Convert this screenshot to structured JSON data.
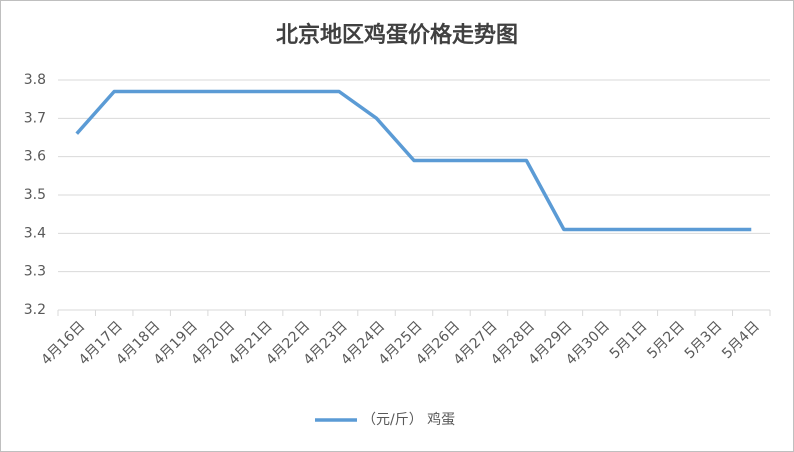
{
  "chart_data": {
    "type": "line",
    "title": "北京地区鸡蛋价格走势图",
    "categories": [
      "4月16日",
      "4月17日",
      "4月18日",
      "4月19日",
      "4月20日",
      "4月21日",
      "4月22日",
      "4月23日",
      "4月24日",
      "4月25日",
      "4月26日",
      "4月27日",
      "4月28日",
      "4月29日",
      "4月30日",
      "5月1日",
      "5月2日",
      "5月3日",
      "5月4日"
    ],
    "series": [
      {
        "name": "（元/斤） 鸡蛋",
        "color": "#5b9bd5",
        "values": [
          3.66,
          3.77,
          3.77,
          3.77,
          3.77,
          3.77,
          3.77,
          3.77,
          3.7,
          3.59,
          3.59,
          3.59,
          3.59,
          3.41,
          3.41,
          3.41,
          3.41,
          3.41,
          3.41
        ]
      }
    ],
    "ylim": [
      3.2,
      3.8
    ],
    "yticks": [
      3.2,
      3.3,
      3.4,
      3.5,
      3.6,
      3.7,
      3.8
    ],
    "grid": true,
    "legend": "bottom"
  }
}
